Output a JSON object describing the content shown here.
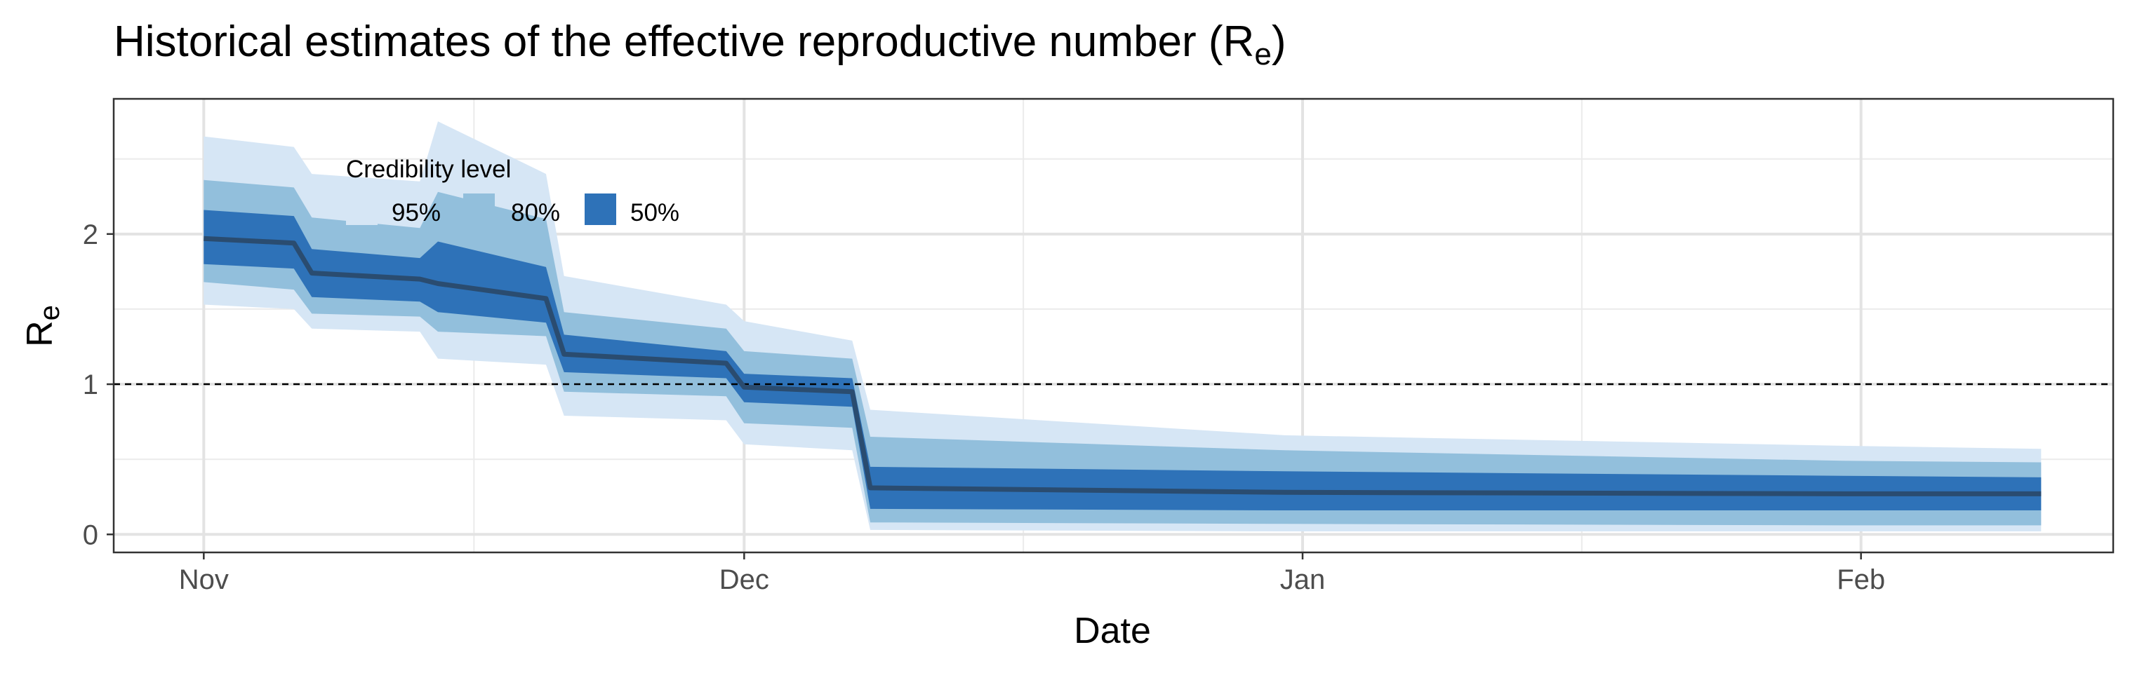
{
  "chart_data": {
    "type": "area",
    "title": "Historical estimates of the effective reproductive number (R",
    "title_subscript": "e",
    "title_suffix": ")",
    "xlabel": "Date",
    "ylabel": "R",
    "ylabel_subscript": "e",
    "x_tick_labels": [
      "Nov",
      "Dec",
      "Jan",
      "Feb"
    ],
    "x_ticks": [
      "2020-11-01",
      "2020-12-01",
      "2021-01-01",
      "2021-02-01"
    ],
    "xlim": [
      "2020-10-27",
      "2021-02-15"
    ],
    "y_ticks": [
      0,
      1,
      2
    ],
    "ylim": [
      -0.12,
      2.9
    ],
    "reference_line": {
      "y": 1,
      "style": "dashed"
    },
    "grid": true,
    "legend": {
      "title": "Credibility level",
      "placement": "top-left",
      "items": [
        {
          "label": "95%",
          "color": "#d6e6f5"
        },
        {
          "label": "80%",
          "color": "#92bfdc"
        },
        {
          "label": "50%",
          "color": "#2e72b8"
        }
      ]
    },
    "colors": {
      "median": "#2a4c70",
      "band95": "#d6e6f5",
      "band80": "#92bfdc",
      "band50": "#2e72b8"
    },
    "series": [
      {
        "x": "2020-11-01",
        "median": 1.97,
        "lo50": 1.8,
        "hi50": 2.16,
        "lo80": 1.68,
        "hi80": 2.36,
        "lo95": 1.53,
        "hi95": 2.65
      },
      {
        "x": "2020-11-06",
        "median": 1.94,
        "lo50": 1.77,
        "hi50": 2.12,
        "lo80": 1.63,
        "hi80": 2.31,
        "lo95": 1.5,
        "hi95": 2.58
      },
      {
        "x": "2020-11-07",
        "median": 1.74,
        "lo50": 1.58,
        "hi50": 1.9,
        "lo80": 1.47,
        "hi80": 2.11,
        "lo95": 1.37,
        "hi95": 2.4
      },
      {
        "x": "2020-11-13",
        "median": 1.7,
        "lo50": 1.55,
        "hi50": 1.84,
        "lo80": 1.45,
        "hi80": 2.04,
        "lo95": 1.35,
        "hi95": 2.35
      },
      {
        "x": "2020-11-14",
        "median": 1.67,
        "lo50": 1.48,
        "hi50": 1.95,
        "lo80": 1.35,
        "hi80": 2.28,
        "lo95": 1.17,
        "hi95": 2.75
      },
      {
        "x": "2020-11-20",
        "median": 1.57,
        "lo50": 1.41,
        "hi50": 1.78,
        "lo80": 1.32,
        "hi80": 2.1,
        "lo95": 1.13,
        "hi95": 2.4
      },
      {
        "x": "2020-11-21",
        "median": 1.2,
        "lo50": 1.08,
        "hi50": 1.33,
        "lo80": 0.95,
        "hi80": 1.48,
        "lo95": 0.79,
        "hi95": 1.72
      },
      {
        "x": "2020-11-30",
        "median": 1.14,
        "lo50": 1.04,
        "hi50": 1.22,
        "lo80": 0.92,
        "hi80": 1.37,
        "lo95": 0.76,
        "hi95": 1.53
      },
      {
        "x": "2020-12-01",
        "median": 0.98,
        "lo50": 0.88,
        "hi50": 1.07,
        "lo80": 0.74,
        "hi80": 1.22,
        "lo95": 0.6,
        "hi95": 1.42
      },
      {
        "x": "2020-12-07",
        "median": 0.95,
        "lo50": 0.85,
        "hi50": 1.04,
        "lo80": 0.71,
        "hi80": 1.17,
        "lo95": 0.56,
        "hi95": 1.29
      },
      {
        "x": "2020-12-08",
        "median": 0.31,
        "lo50": 0.17,
        "hi50": 0.45,
        "lo80": 0.08,
        "hi80": 0.65,
        "lo95": 0.03,
        "hi95": 0.83
      },
      {
        "x": "2020-12-31",
        "median": 0.28,
        "lo50": 0.16,
        "hi50": 0.42,
        "lo80": 0.07,
        "hi80": 0.56,
        "lo95": 0.02,
        "hi95": 0.66
      },
      {
        "x": "2021-01-31",
        "median": 0.27,
        "lo50": 0.16,
        "hi50": 0.39,
        "lo80": 0.06,
        "hi80": 0.49,
        "lo95": 0.02,
        "hi95": 0.59
      },
      {
        "x": "2021-02-11",
        "median": 0.27,
        "lo50": 0.16,
        "hi50": 0.38,
        "lo80": 0.06,
        "hi80": 0.48,
        "lo95": 0.02,
        "hi95": 0.57
      }
    ]
  }
}
